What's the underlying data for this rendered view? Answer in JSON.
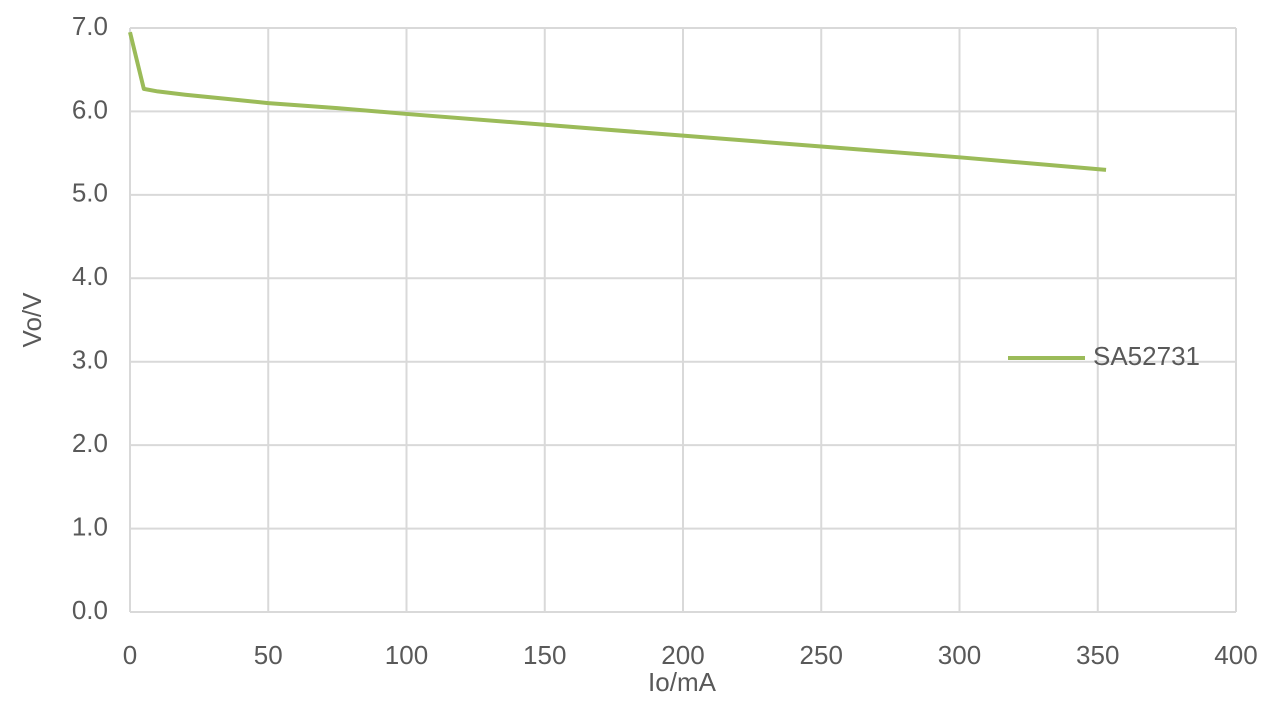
{
  "chart_data": {
    "type": "line",
    "x_label": "Io/mA",
    "y_label": "Vo/V",
    "x": [
      0,
      5,
      10,
      20,
      35,
      50,
      75,
      100,
      150,
      200,
      250,
      300,
      353
    ],
    "series": [
      {
        "name": "SA52731",
        "color": "#9bbb59",
        "values": [
          6.95,
          6.27,
          6.24,
          6.2,
          6.15,
          6.1,
          6.04,
          5.97,
          5.84,
          5.71,
          5.58,
          5.45,
          5.3
        ]
      }
    ],
    "xlim": [
      0,
      400
    ],
    "xticks": [
      0,
      50,
      100,
      150,
      200,
      250,
      300,
      350,
      400
    ],
    "ylim": [
      0,
      7
    ],
    "yticks": [
      {
        "value": 0,
        "label": "0.0"
      },
      {
        "value": 1,
        "label": "1.0"
      },
      {
        "value": 2,
        "label": "2.0"
      },
      {
        "value": 3,
        "label": "3.0"
      },
      {
        "value": 4,
        "label": "4.0"
      },
      {
        "value": 5,
        "label": "5.0"
      },
      {
        "value": 6,
        "label": "6.0"
      },
      {
        "value": 7,
        "label": "7.0"
      }
    ],
    "grid": true,
    "legend": "right"
  }
}
